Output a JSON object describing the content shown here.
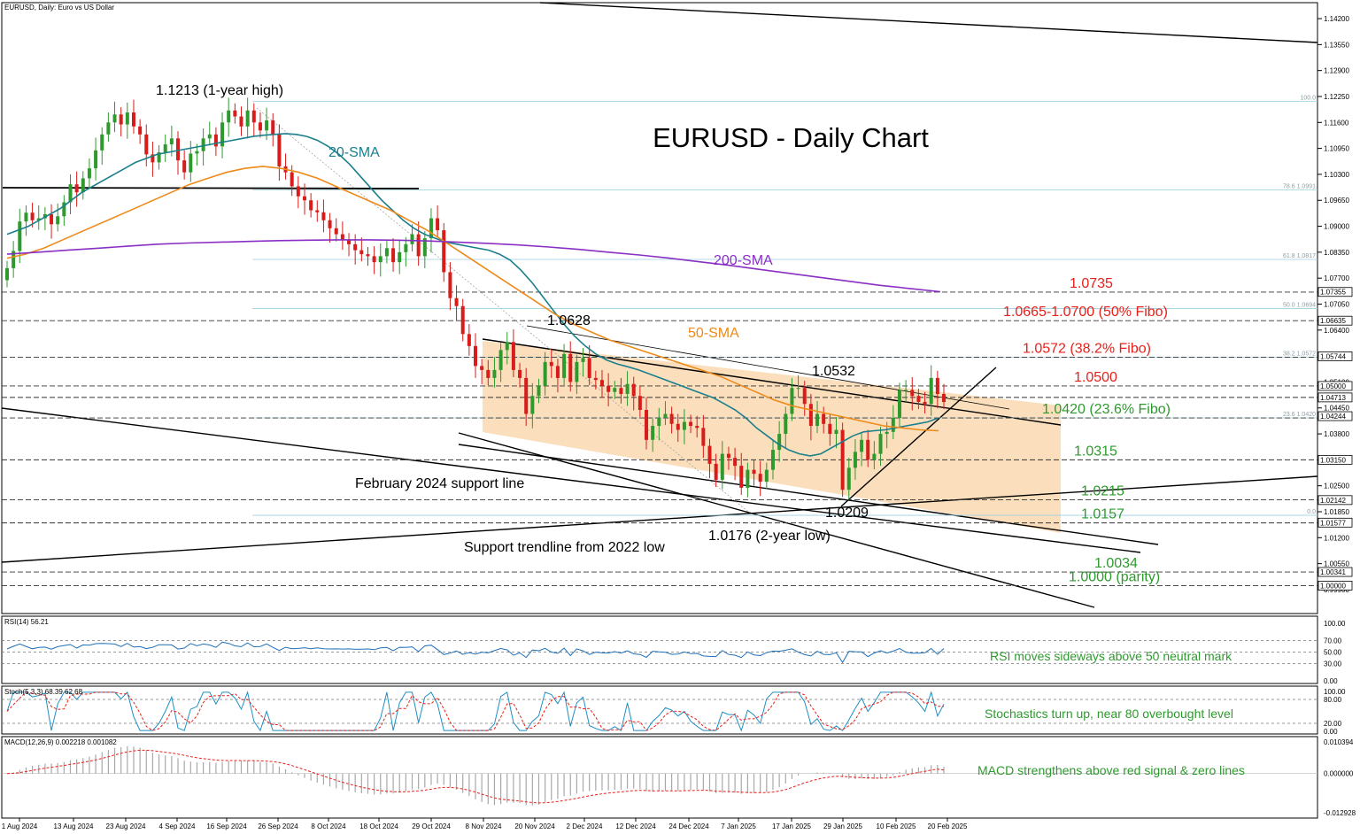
{
  "header": {
    "symbol": "EURUSD, Daily:  Euro vs US Dollar",
    "rsi": "RSI(14) 56.21",
    "stoch": "Stoch(5,3,3) 68.39 62.68",
    "macd": "MACD(12,26,9) 0.002218 0.001082"
  },
  "chart_data": {
    "type": "candlestick",
    "title": "EURUSD - Daily Chart",
    "ylim": [
      0.993,
      1.146
    ],
    "x_ticks": [
      "1 Aug 2024",
      "13 Aug 2024",
      "23 Aug 2024",
      "4 Sep 2024",
      "16 Sep 2024",
      "26 Sep 2024",
      "8 Oct 2024",
      "18 Oct 2024",
      "29 Oct 2024",
      "8 Nov 2024",
      "20 Nov 2024",
      "2 Dec 2024",
      "12 Dec 2024",
      "24 Dec 2024",
      "7 Jan 2025",
      "17 Jan 2025",
      "29 Jan 2025",
      "10 Feb 2025",
      "20 Feb 2025"
    ],
    "y_ticks": [
      "1.14200",
      "1.13550",
      "1.12900",
      "1.12250",
      "1.11600",
      "1.10950",
      "1.10300",
      "1.09650",
      "1.09000",
      "1.08350",
      "1.07700",
      "1.07050",
      "1.06400",
      "1.05750",
      "1.05100",
      "1.04450",
      "1.03800",
      "1.03150",
      "1.02500",
      "1.01850",
      "1.01200",
      "1.00550",
      "0.99900"
    ],
    "price_tags": [
      {
        "label": "1.07355",
        "value": 1.07355
      },
      {
        "label": "1.06635",
        "value": 1.06635
      },
      {
        "label": "1.05744",
        "value": 1.05744
      },
      {
        "label": "1.05000",
        "value": 1.05
      },
      {
        "label": "1.04713",
        "value": 1.04713
      },
      {
        "label": "1.04244",
        "value": 1.04244
      },
      {
        "label": "1.03150",
        "value": 1.0315
      },
      {
        "label": "1.02142",
        "value": 1.02142
      },
      {
        "label": "1.01577",
        "value": 1.01577
      },
      {
        "label": "1.00341",
        "value": 1.00341
      },
      {
        "label": "1.00000",
        "value": 1.0
      }
    ],
    "horizontal_levels": [
      {
        "label": "1.0735",
        "value": 1.0735,
        "color": "#e8201b"
      },
      {
        "label": "1.0665-1.0700 (50% Fibo)",
        "value": 1.06635,
        "color": "#e8201b"
      },
      {
        "label": "1.0572 (38.2% Fibo)",
        "value": 1.0572,
        "color": "#e8201b"
      },
      {
        "label": "1.0500",
        "value": 1.05,
        "color": "#e8201b"
      },
      {
        "label": "1.0420 (23.6% Fibo)",
        "value": 1.042,
        "color": "#2e9a2e"
      },
      {
        "label": "1.0315",
        "value": 1.0315,
        "color": "#2e9a2e"
      },
      {
        "label": "1.0215",
        "value": 1.0215,
        "color": "#2e9a2e"
      },
      {
        "label": "1.0157",
        "value": 1.0157,
        "color": "#2e9a2e"
      },
      {
        "label": "1.0034",
        "value": 1.0034,
        "color": "#2e9a2e"
      },
      {
        "label": "1.0000 (parity)",
        "value": 1.0,
        "color": "#2e9a2e"
      }
    ],
    "fibo_levels": [
      {
        "label": "100.0",
        "value": 1.1213
      },
      {
        "label": "78.6 1.0991",
        "value": 1.0991
      },
      {
        "label": "61.8 1.0817",
        "value": 1.0817
      },
      {
        "label": "50.0 1.0694",
        "value": 1.0694
      },
      {
        "label": "38.2 1.0572",
        "value": 1.0572
      },
      {
        "label": "23.6 1.0420",
        "value": 1.042
      },
      {
        "label": "0.0",
        "value": 1.0176
      }
    ],
    "annotations": [
      {
        "text": "1.1213 (1-year high)",
        "color": "#000000"
      },
      {
        "text": "1.0628",
        "color": "#000000"
      },
      {
        "text": "1.0532",
        "color": "#000000"
      },
      {
        "text": "1.0209",
        "color": "#000000"
      },
      {
        "text": "1.0176 (2-year low)",
        "color": "#000000"
      },
      {
        "text": "February 2024 support line",
        "color": "#000000"
      },
      {
        "text": "Support trendline from 2022 low",
        "color": "#000000"
      },
      {
        "text": "20-SMA",
        "color": "#1b7f8c"
      },
      {
        "text": "50-SMA",
        "color": "#ee8a1a"
      },
      {
        "text": "200-SMA",
        "color": "#8a2fc4"
      }
    ],
    "candles_close": [
      1.0795,
      1.0838,
      1.0912,
      1.0934,
      1.0915,
      1.092,
      1.093,
      1.0905,
      1.0925,
      1.096,
      1.1005,
      1.0985,
      1.102,
      1.1045,
      1.109,
      1.113,
      1.116,
      1.118,
      1.1155,
      1.1185,
      1.115,
      1.113,
      1.108,
      1.106,
      1.1085,
      1.1105,
      1.112,
      1.1065,
      1.1035,
      1.1082,
      1.1088,
      1.112,
      1.113,
      1.11,
      1.116,
      1.119,
      1.1175,
      1.115,
      1.119,
      1.116,
      1.114,
      1.1165,
      1.113,
      1.105,
      1.1035,
      1.1,
      1.0975,
      1.0965,
      1.094,
      1.0935,
      1.0915,
      1.0895,
      1.088,
      1.0865,
      1.0855,
      1.084,
      1.083,
      1.0825,
      1.081,
      1.0825,
      1.0845,
      1.081,
      1.0835,
      1.0855,
      1.088,
      1.0825,
      1.087,
      1.092,
      1.089,
      1.0785,
      1.072,
      1.07,
      1.063,
      1.06,
      1.055,
      1.054,
      1.052,
      1.054,
      1.059,
      1.061,
      1.054,
      1.052,
      1.043,
      1.0475,
      1.05,
      1.056,
      1.055,
      1.052,
      1.058,
      1.051,
      1.056,
      1.057,
      1.052,
      1.0515,
      1.05,
      1.0485,
      1.0495,
      1.048,
      1.0505,
      1.0475,
      1.044,
      1.0365,
      1.04,
      1.042,
      1.043,
      1.0405,
      1.039,
      1.041,
      1.04,
      1.0395,
      1.035,
      1.0305,
      1.0265,
      1.033,
      1.032,
      1.03,
      1.0245,
      1.029,
      1.028,
      1.026,
      1.029,
      1.034,
      1.038,
      1.043,
      1.0495,
      1.0495,
      1.0455,
      1.04,
      1.043,
      1.0405,
      1.038,
      1.039,
      1.024,
      1.0295,
      1.0335,
      1.0365,
      1.0315,
      1.033,
      1.038,
      1.0385,
      1.042,
      1.049,
      1.049,
      1.0475,
      1.046,
      1.0455,
      1.052,
      1.048,
      1.046
    ],
    "sma20": [
      1.088,
      1.089,
      1.09,
      1.0915,
      1.093,
      1.0945,
      1.0965,
      1.0985,
      1.1,
      1.1015,
      1.103,
      1.1045,
      1.106,
      1.107,
      1.108,
      1.1085,
      1.109,
      1.1095,
      1.11,
      1.1105,
      1.111,
      1.1115,
      1.112,
      1.1125,
      1.1128,
      1.113,
      1.1132,
      1.113,
      1.1125,
      1.1115,
      1.11,
      1.108,
      1.1055,
      1.1025,
      1.0995,
      1.0965,
      1.094,
      1.0915,
      1.0895,
      1.088,
      1.087,
      1.086,
      1.0855,
      1.085,
      1.0845,
      1.084,
      1.083,
      1.0815,
      1.079,
      1.076,
      1.0725,
      1.069,
      1.0655,
      1.0625,
      1.06,
      1.058,
      1.0565,
      1.0555,
      1.0548,
      1.054,
      1.053,
      1.052,
      1.051,
      1.05,
      1.049,
      1.048,
      1.047,
      1.0455,
      1.044,
      1.042,
      1.0395,
      1.0375,
      1.0355,
      1.034,
      1.033,
      1.0325,
      1.033,
      1.0345,
      1.036,
      1.0375,
      1.0385,
      1.0388,
      1.039,
      1.0395,
      1.04,
      1.0405,
      1.041,
      1.042
    ],
    "sma50": [
      1.082,
      1.083,
      1.0845,
      1.0865,
      1.0885,
      1.0905,
      1.0925,
      1.0945,
      1.0965,
      1.0985,
      1.1005,
      1.102,
      1.1035,
      1.1045,
      1.105,
      1.1045,
      1.1035,
      1.102,
      1.1,
      1.098,
      1.096,
      1.094,
      1.0915,
      1.089,
      1.086,
      1.083,
      1.08,
      1.077,
      1.074,
      1.071,
      1.068,
      1.0655,
      1.0635,
      1.0615,
      1.06,
      1.0585,
      1.057,
      1.0555,
      1.054,
      1.0525,
      1.0505,
      1.0485,
      1.0465,
      1.045,
      1.044,
      1.043,
      1.042,
      1.041,
      1.04,
      1.0395,
      1.039,
      1.0388
    ],
    "sma200": [
      1.083,
      1.0835,
      1.084,
      1.0845,
      1.085,
      1.0855,
      1.0858,
      1.086,
      1.0862,
      1.0864,
      1.0865,
      1.0866,
      1.0866,
      1.0865,
      1.0863,
      1.086,
      1.0857,
      1.0853,
      1.0848,
      1.0842,
      1.0835,
      1.0828,
      1.082,
      1.0811,
      1.0802,
      1.0792,
      1.0782,
      1.0772,
      1.0762,
      1.0752,
      1.0744,
      1.0736
    ],
    "rsi": {
      "levels": [
        70,
        50,
        30
      ],
      "y_ticks": [
        "100.00",
        "70.00",
        "50.00",
        "30.00",
        "0.00"
      ],
      "last": 56.21
    },
    "stochastic": {
      "levels": [
        80,
        20
      ],
      "y_ticks": [
        "100.00",
        "80.00",
        "20.00",
        "0.00"
      ],
      "k": 68.39,
      "d": 62.68
    },
    "macd_panel": {
      "y_ticks": [
        "0.010394",
        "0.000000",
        "-0.012928"
      ],
      "macd": 0.002218,
      "signal": 0.001082
    },
    "indicator_notes": [
      "RSI moves sideways above 50 neutral mark",
      "Stochastics turn up, near 80 overbought level",
      "MACD strengthens above red signal & zero lines"
    ]
  }
}
